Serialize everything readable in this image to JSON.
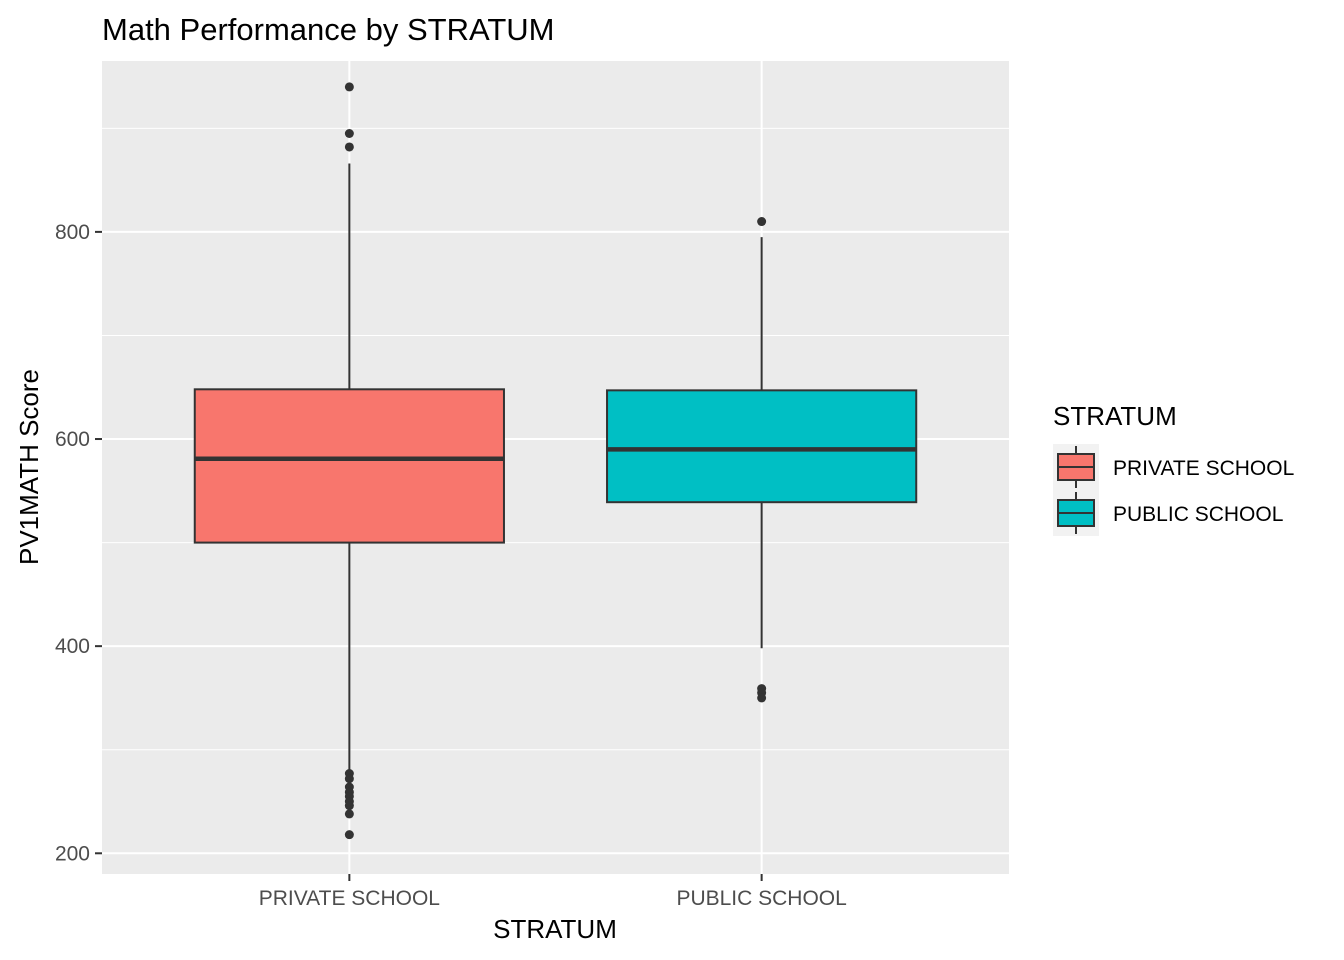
{
  "chart_data": {
    "type": "boxplot",
    "title": "Math Performance by STRATUM",
    "xlabel": "STRATUM",
    "ylabel": "PV1MATH Score",
    "ylim": [
      180,
      965
    ],
    "y_ticks": [
      200,
      400,
      600,
      800
    ],
    "grid": true,
    "legend": {
      "title": "STRATUM",
      "position": "right",
      "entries": [
        "PRIVATE SCHOOL",
        "PUBLIC SCHOOL"
      ]
    },
    "categories": [
      "PRIVATE SCHOOL",
      "PUBLIC SCHOOL"
    ],
    "boxes": [
      {
        "category": "PRIVATE SCHOOL",
        "color": "#F8766D",
        "whisker_low": 277,
        "q1": 500,
        "median": 581,
        "q3": 648,
        "whisker_high": 866,
        "outliers": [
          940,
          895,
          882,
          277,
          272,
          264,
          259,
          255,
          250,
          246,
          238,
          218
        ]
      },
      {
        "category": "PUBLIC SCHOOL",
        "color": "#00BFC4",
        "whisker_low": 398,
        "q1": 539,
        "median": 590,
        "q3": 647,
        "whisker_high": 795,
        "outliers": [
          810,
          359,
          355,
          350
        ]
      }
    ]
  },
  "colors": {
    "panel_background": "#EBEBEB",
    "grid_line": "#FFFFFF",
    "box_outline": "#333333",
    "tick_label": "#4D4D4D"
  }
}
